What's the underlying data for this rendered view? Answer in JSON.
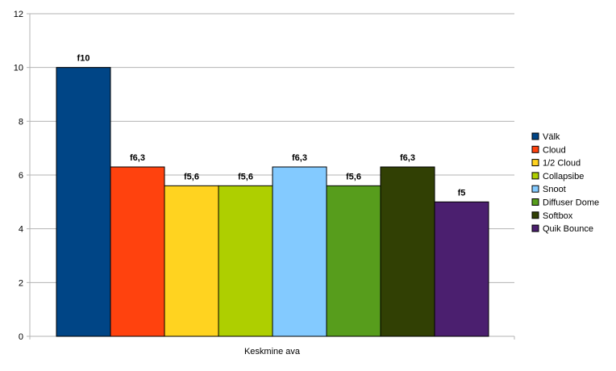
{
  "chart_data": {
    "type": "bar",
    "title": "",
    "xlabel": "",
    "ylabel": "",
    "categories": [
      "Keskmine ava"
    ],
    "ylim": [
      0,
      12
    ],
    "yticks": [
      0,
      2,
      4,
      6,
      8,
      10,
      12
    ],
    "grid": true,
    "legend_position": "right",
    "series": [
      {
        "name": "Välk",
        "values": [
          10
        ],
        "label": "f10",
        "color": "#004586"
      },
      {
        "name": "Cloud",
        "values": [
          6.3
        ],
        "label": "f6,3",
        "color": "#ff420e"
      },
      {
        "name": "1/2 Cloud",
        "values": [
          5.6
        ],
        "label": "f5,6",
        "color": "#ffd320"
      },
      {
        "name": "Collapsibe",
        "values": [
          5.6
        ],
        "label": "f5,6",
        "color": "#aecf00"
      },
      {
        "name": "Snoot",
        "values": [
          6.3
        ],
        "label": "f6,3",
        "color": "#83caff"
      },
      {
        "name": "Diffuser Dome",
        "values": [
          5.6
        ],
        "label": "f5,6",
        "color": "#579d1c"
      },
      {
        "name": "Softbox",
        "values": [
          6.3
        ],
        "label": "f6,3",
        "color": "#314004"
      },
      {
        "name": "Quik Bounce",
        "values": [
          5
        ],
        "label": "f5",
        "color": "#4b1f6f"
      }
    ]
  }
}
